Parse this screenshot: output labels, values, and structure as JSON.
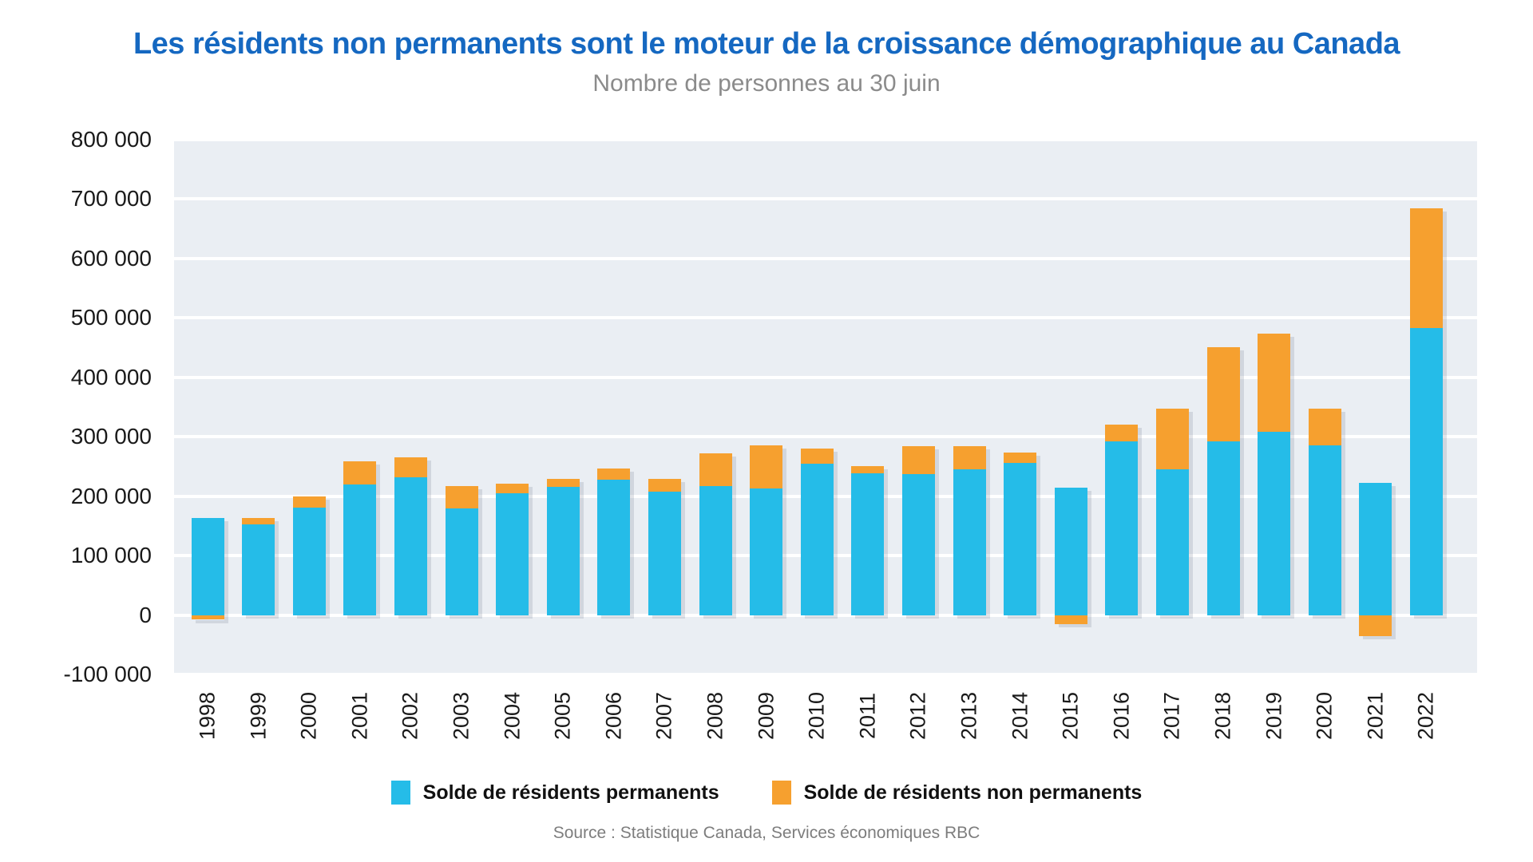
{
  "header": {
    "title": "Les résidents non permanents sont le moteur de la croissance démographique au Canada",
    "subtitle": "Nombre de personnes au 30 juin",
    "title_color": "#1568c1",
    "subtitle_color": "#8b8b8b"
  },
  "footer": {
    "source": "Source : Statistique Canada, Services économiques RBC",
    "source_color": "#7d7d7d"
  },
  "chart_data": {
    "type": "bar",
    "stacked": true,
    "title": "Les résidents non permanents sont le moteur de la croissance démographique au Canada",
    "subtitle": "Nombre de personnes au 30 juin",
    "xlabel": "",
    "ylabel": "Nombre de personnes",
    "grid": true,
    "legend_position": "bottom",
    "plot_background": "#eaeef3",
    "gridline_color": "#ffffff",
    "ylim": [
      -100000,
      800000
    ],
    "y_ticks": [
      {
        "label": "800 000",
        "value": 800000
      },
      {
        "label": "700 000",
        "value": 700000
      },
      {
        "label": "600 000",
        "value": 600000
      },
      {
        "label": "500 000",
        "value": 500000
      },
      {
        "label": "400 000",
        "value": 400000
      },
      {
        "label": "300 000",
        "value": 300000
      },
      {
        "label": "200 000",
        "value": 200000
      },
      {
        "label": "100 000",
        "value": 100000
      },
      {
        "label": "0",
        "value": 0
      },
      {
        "label": "-100 000",
        "value": -100000
      }
    ],
    "categories": [
      "1998",
      "1999",
      "2000",
      "2001",
      "2002",
      "2003",
      "2004",
      "2005",
      "2006",
      "2007",
      "2008",
      "2009",
      "2010",
      "2011",
      "2012",
      "2013",
      "2014",
      "2015",
      "2016",
      "2017",
      "2018",
      "2019",
      "2020",
      "2021",
      "2022"
    ],
    "series": [
      {
        "name": "Solde de résidents permanents",
        "color": "#25bce8",
        "values": [
          163000,
          153000,
          181000,
          220000,
          232000,
          180000,
          205000,
          215000,
          228000,
          207000,
          217000,
          213000,
          254000,
          238000,
          237000,
          245000,
          256000,
          214000,
          292000,
          245000,
          292000,
          308000,
          285000,
          222000,
          483000
        ]
      },
      {
        "name": "Solde de résidents non permanents",
        "color": "#f6a02f",
        "values": [
          -8000,
          10000,
          18000,
          38000,
          33000,
          37000,
          16000,
          14000,
          18000,
          22000,
          55000,
          73000,
          26000,
          12000,
          47000,
          39000,
          18000,
          -15000,
          28000,
          102000,
          159000,
          166000,
          62000,
          -35000,
          202000
        ]
      }
    ]
  }
}
